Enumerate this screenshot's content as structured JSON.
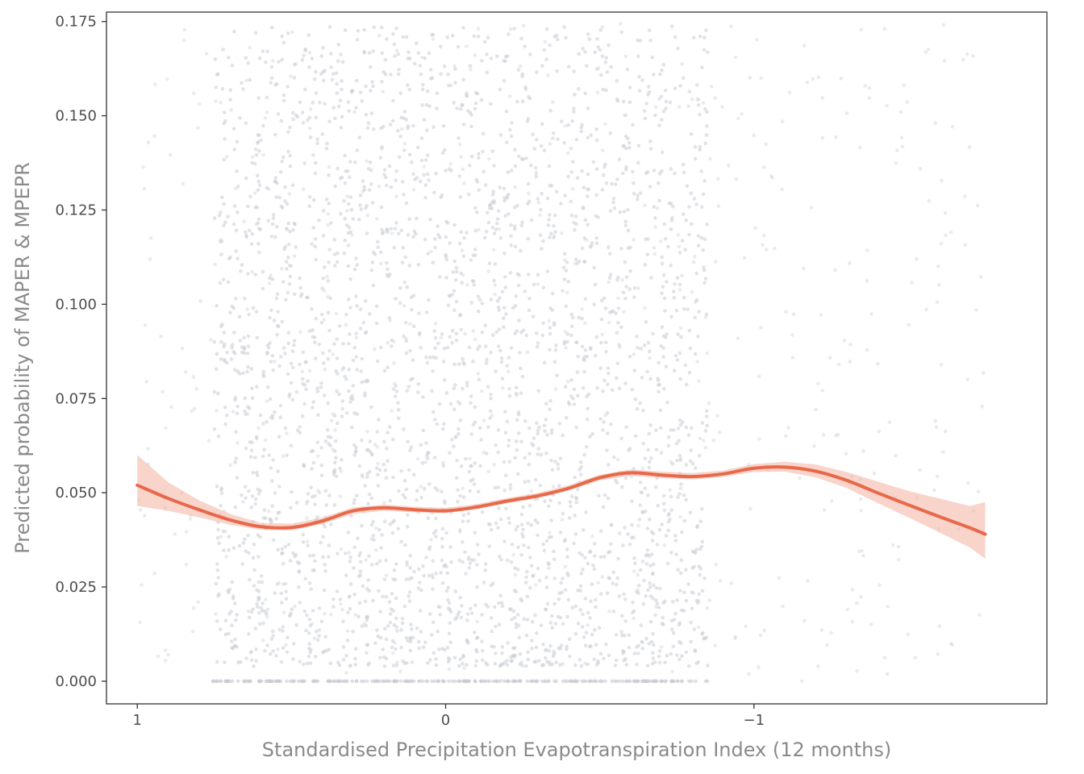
{
  "chart_data": {
    "type": "scatter",
    "title": "",
    "xlabel": "Standardised Precipitation Evapotranspiration Index (12 months)",
    "ylabel": "Predicted probability of MAPER & MPEPR",
    "x_axis_reversed": true,
    "xlim": [
      1.1,
      -1.95
    ],
    "ylim": [
      -0.006,
      0.1775
    ],
    "grid": false,
    "x_ticks": [
      {
        "value": 1,
        "label": "1"
      },
      {
        "value": 0,
        "label": "0"
      },
      {
        "value": -1,
        "label": "−1"
      }
    ],
    "y_ticks": [
      {
        "value": 0.0,
        "label": "0.000"
      },
      {
        "value": 0.025,
        "label": "0.025"
      },
      {
        "value": 0.05,
        "label": "0.050"
      },
      {
        "value": 0.075,
        "label": "0.075"
      },
      {
        "value": 0.1,
        "label": "0.100"
      },
      {
        "value": 0.125,
        "label": "0.125"
      },
      {
        "value": 0.15,
        "label": "0.150"
      },
      {
        "value": 0.175,
        "label": "0.175"
      }
    ],
    "scatter": {
      "color": "#c9ccd3",
      "x_core_range": [
        0.75,
        -0.85
      ],
      "x_full_range": [
        1.0,
        -1.75
      ],
      "y_range": [
        0.0,
        0.175
      ],
      "zero_band_x_range": [
        0.77,
        -0.85
      ]
    },
    "smooth": {
      "color": "#e8684a",
      "band_color": "#f4b8a9",
      "x": [
        1.0,
        0.9,
        0.8,
        0.7,
        0.6,
        0.5,
        0.4,
        0.3,
        0.2,
        0.1,
        0.0,
        -0.1,
        -0.2,
        -0.3,
        -0.4,
        -0.5,
        -0.6,
        -0.7,
        -0.8,
        -0.9,
        -1.0,
        -1.1,
        -1.2,
        -1.3,
        -1.4,
        -1.5,
        -1.6,
        -1.7,
        -1.75
      ],
      "y": [
        0.052,
        0.0485,
        0.0455,
        0.0428,
        0.041,
        0.0408,
        0.0425,
        0.0452,
        0.046,
        0.0455,
        0.0452,
        0.0462,
        0.0478,
        0.0492,
        0.0512,
        0.054,
        0.0553,
        0.0547,
        0.0543,
        0.055,
        0.0565,
        0.0568,
        0.0557,
        0.0533,
        0.05,
        0.0468,
        0.0437,
        0.0407,
        0.039
      ],
      "lower": [
        0.0465,
        0.0452,
        0.0435,
        0.0415,
        0.0402,
        0.04,
        0.0417,
        0.0444,
        0.0452,
        0.0448,
        0.0446,
        0.0456,
        0.0472,
        0.0486,
        0.0506,
        0.0533,
        0.0545,
        0.0539,
        0.0535,
        0.0542,
        0.0555,
        0.0556,
        0.0541,
        0.0513,
        0.0473,
        0.0435,
        0.0395,
        0.0355,
        0.0325
      ],
      "upper": [
        0.06,
        0.0528,
        0.048,
        0.0444,
        0.042,
        0.0418,
        0.0434,
        0.0461,
        0.0469,
        0.0463,
        0.046,
        0.047,
        0.0486,
        0.05,
        0.052,
        0.0548,
        0.0562,
        0.0556,
        0.0552,
        0.0559,
        0.0576,
        0.0582,
        0.0575,
        0.0555,
        0.053,
        0.0505,
        0.0485,
        0.0465,
        0.0475
      ]
    }
  }
}
